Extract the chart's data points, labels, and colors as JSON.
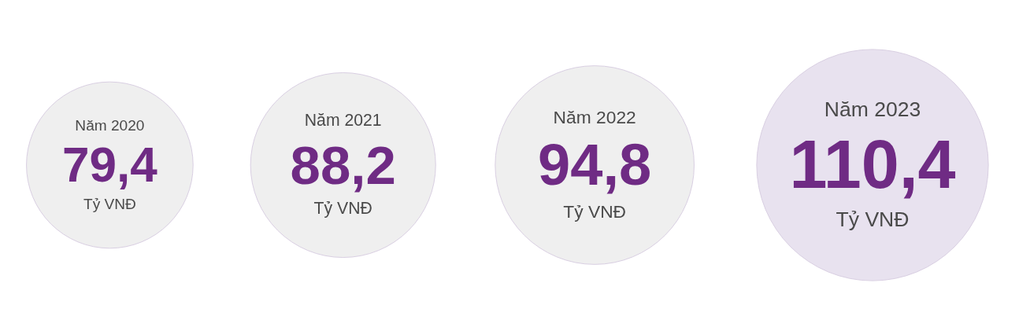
{
  "chart_data": {
    "type": "other",
    "categories": [
      "Năm 2020",
      "Năm 2021",
      "Năm 2022",
      "Năm 2023"
    ],
    "values": [
      79.4,
      88.2,
      94.8,
      110.4
    ],
    "value_labels": [
      "79,4",
      "88,2",
      "94,8",
      "110,4"
    ],
    "colors": [
      "#efefef",
      "#efefef",
      "#efefef",
      "#e8e2ef"
    ],
    "annotations": [
      "Tỷ VNĐ",
      "Tỷ VNĐ",
      "Tỷ VNĐ",
      "Tỷ VNĐ"
    ]
  }
}
